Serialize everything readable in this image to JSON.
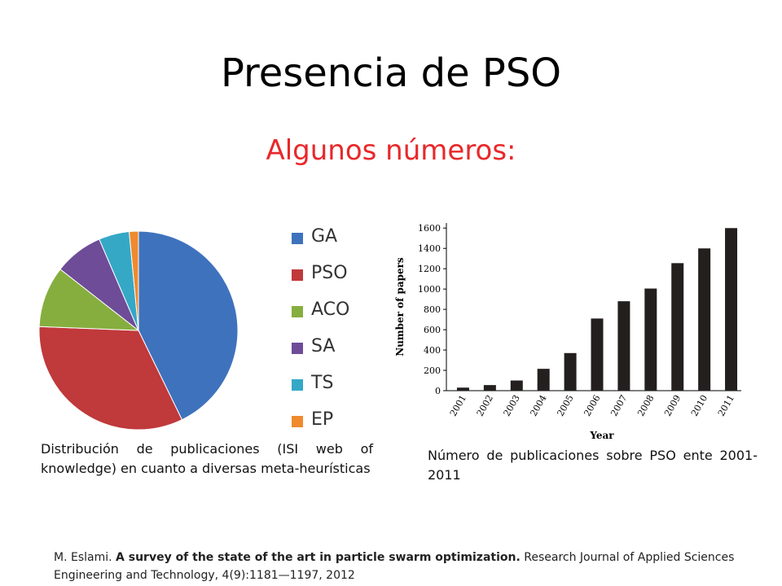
{
  "slide": {
    "title": "Presencia de PSO",
    "subtitle": "Algunos números:",
    "slide_number": "",
    "accent_color": "#e8282a"
  },
  "captions": {
    "left": "Distribución de publicaciones (ISI web of knowledge) en cuanto a diversas meta-heurísticas",
    "right": "Número de publicaciones sobre PSO ente 2001-2011"
  },
  "reference": {
    "author": "M. Eslami.",
    "title": "A survey of the state of the art in particle swarm optimization.",
    "rest": "Research Journal of Applied Sciences Engineering and Technology, 4(9):1181—1197, 2012"
  },
  "chart_data": [
    {
      "type": "pie",
      "categories": [
        "GA",
        "PSO",
        "ACO",
        "SA",
        "TS",
        "EP"
      ],
      "values": [
        43,
        33,
        10,
        8,
        5,
        1.5
      ],
      "colors": [
        "#3f72bd",
        "#c0393b",
        "#86ae3f",
        "#6e4c97",
        "#35a8c6",
        "#ef8a2e"
      ],
      "legend": "right"
    },
    {
      "type": "bar",
      "categories": [
        "2001",
        "2002",
        "2003",
        "2004",
        "2005",
        "2006",
        "2007",
        "2008",
        "2009",
        "2010",
        "2011"
      ],
      "values": [
        30,
        55,
        100,
        215,
        370,
        710,
        880,
        1005,
        1255,
        1400,
        1600
      ],
      "xlabel": "Year",
      "ylabel": "Number of papers",
      "ylim": [
        0,
        1650
      ],
      "yticks": [
        0,
        200,
        400,
        600,
        800,
        1000,
        1200,
        1400,
        1600
      ],
      "bar_color": "#231f1e",
      "grid": false
    }
  ]
}
